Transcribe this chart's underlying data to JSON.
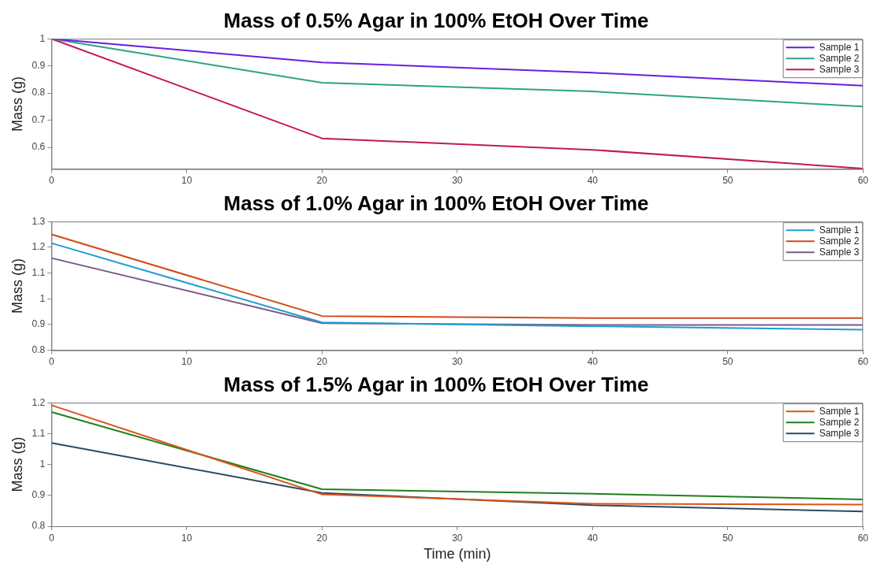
{
  "chart_data": [
    {
      "type": "line",
      "title": "Mass of 0.5% Agar in 100% EtOH Over Time",
      "ylabel": "Mass (g)",
      "x": [
        0,
        20,
        40,
        60
      ],
      "xlim": [
        0,
        60
      ],
      "xticks": [
        0,
        10,
        20,
        30,
        40,
        50,
        60
      ],
      "ylim": [
        0.52,
        1
      ],
      "yticks": [
        0.6,
        0.7,
        0.8,
        0.9,
        1
      ],
      "grid": false,
      "legend": "top right",
      "marker": "none",
      "tick_labels": "xy",
      "series": [
        {
          "name": "Sample 1",
          "color": "#6a1ee0",
          "values": [
            1,
            0.913,
            0.875,
            0.827
          ]
        },
        {
          "name": "Sample 2",
          "color": "#2ea387",
          "values": [
            1,
            0.838,
            0.806,
            0.75
          ]
        },
        {
          "name": "Sample 3",
          "color": "#c2185b",
          "values": [
            1,
            0.633,
            0.591,
            0.522
          ]
        }
      ]
    },
    {
      "type": "line",
      "title": "Mass of 1.0% Agar in 100% EtOH Over Time",
      "ylabel": "Mass (g)",
      "x": [
        0,
        20,
        40,
        60
      ],
      "xlim": [
        0,
        60
      ],
      "xticks": [
        0,
        10,
        20,
        30,
        40,
        50,
        60
      ],
      "ylim": [
        0.8,
        1.3
      ],
      "yticks": [
        0.8,
        0.9,
        1,
        1.1,
        1.2,
        1.3
      ],
      "grid": false,
      "legend": "top right",
      "marker": "none",
      "series": [
        {
          "name": "Sample 1",
          "color": "#1f9ed1",
          "values": [
            1.216,
            0.908,
            0.893,
            0.88
          ]
        },
        {
          "name": "Sample 2",
          "color": "#d24a1a",
          "values": [
            1.25,
            0.933,
            0.925,
            0.925
          ]
        },
        {
          "name": "Sample 3",
          "color": "#7a5a8a",
          "values": [
            1.158,
            0.905,
            0.898,
            0.898
          ]
        }
      ]
    },
    {
      "type": "line",
      "title": "Mass of 1.5% Agar in 100% EtOH Over Time",
      "xlabel": "Time (min)",
      "ylabel": "Mass (g)",
      "x": [
        0,
        20,
        40,
        60
      ],
      "xlim": [
        0,
        60
      ],
      "xticks": [
        0,
        10,
        20,
        30,
        40,
        50,
        60
      ],
      "ylim": [
        0.8,
        1.2
      ],
      "yticks": [
        0.8,
        0.9,
        1,
        1.1,
        1.2
      ],
      "grid": false,
      "legend": "top right",
      "marker": "none",
      "series": [
        {
          "name": "Sample 1",
          "color": "#d9541a",
          "values": [
            1.192,
            0.903,
            0.873,
            0.87
          ]
        },
        {
          "name": "Sample 2",
          "color": "#1f7f1f",
          "values": [
            1.17,
            0.92,
            0.905,
            0.887
          ]
        },
        {
          "name": "Sample 3",
          "color": "#2c4a66",
          "values": [
            1.07,
            0.908,
            0.868,
            0.848
          ]
        }
      ]
    }
  ]
}
